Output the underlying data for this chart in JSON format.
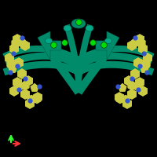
{
  "background_color": "#000000",
  "teal_color": "#008B6B",
  "teal_dark": "#006650",
  "teal_light": "#00AA88",
  "yellow_green_color": "#CCCC44",
  "blue_color": "#3355CC",
  "bright_green_color": "#00DD00",
  "axis_colors": {
    "x": "#FF3333",
    "y": "#33FF33"
  },
  "figure_size": [
    2.0,
    2.0
  ],
  "dpi": 100
}
